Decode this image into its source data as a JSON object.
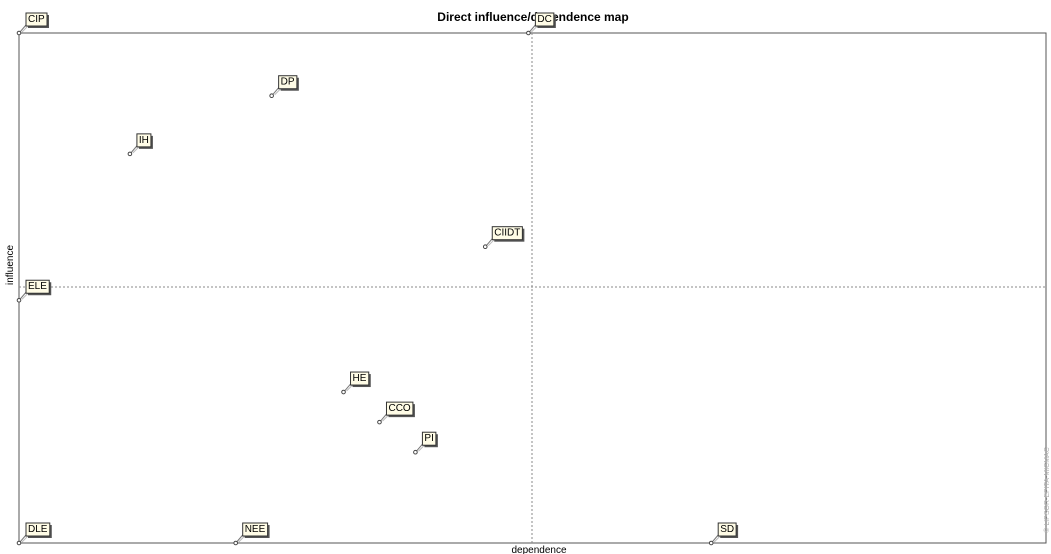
{
  "chart_data": {
    "type": "scatter",
    "title": "Direct influence/dependence map",
    "xlabel": "dependence",
    "ylabel": "influence",
    "watermark": "© LIPSOR-EPITA-MICMAC",
    "grid": false,
    "quadrant_lines": "dashed at axis midpoints",
    "xlim": [
      0,
      100
    ],
    "ylim": [
      0,
      100
    ],
    "points": [
      {
        "label": "CIP",
        "x": 0,
        "y": 100
      },
      {
        "label": "DC",
        "x": 49.6,
        "y": 100
      },
      {
        "label": "DP",
        "x": 24.6,
        "y": 87.7
      },
      {
        "label": "IH",
        "x": 10.8,
        "y": 76.3
      },
      {
        "label": "CIIDT",
        "x": 45.4,
        "y": 58.1
      },
      {
        "label": "ELE",
        "x": 0,
        "y": 47.6
      },
      {
        "label": "HE",
        "x": 31.6,
        "y": 29.6
      },
      {
        "label": "CCO",
        "x": 35.1,
        "y": 23.7
      },
      {
        "label": "PI",
        "x": 38.6,
        "y": 17.8
      },
      {
        "label": "DLE",
        "x": 0,
        "y": 0
      },
      {
        "label": "NEE",
        "x": 21.1,
        "y": 0
      },
      {
        "label": "SD",
        "x": 67.4,
        "y": 0
      }
    ]
  }
}
